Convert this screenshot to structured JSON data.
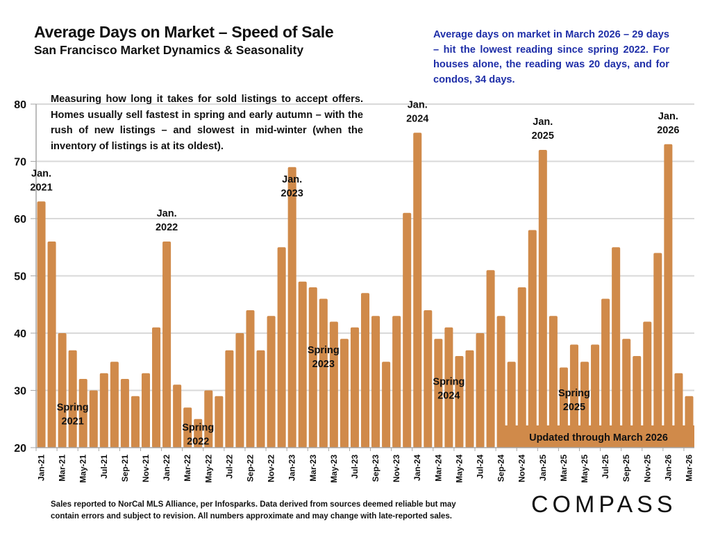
{
  "header": {
    "title": "Average Days on Market – Speed of Sale",
    "subtitle": "San Francisco Market Dynamics & Seasonality"
  },
  "callout": "Average days on market in March 2026 – 29 days –  hit the lowest reading since spring 2022. For houses alone, the reading was 20 days, and for condos, 34 days.",
  "description": "Measuring how long it takes for sold listings to accept offers. Homes usually sell fastest in spring and early autumn – with the rush of new listings – and slowest in mid-winter (when the inventory of listings is at its oldest).",
  "footer": {
    "line1": "Sales reported to NorCal MLS Alliance, per Infosparks. Data derived from sources deemed reliable but may",
    "line2": "contain errors and subject to revision. All numbers approximate and may change with late-reported sales."
  },
  "logo": "COMPASS",
  "colors": {
    "bar": "#d08a4a",
    "grid": "#d9d9d9",
    "callout": "#1f2fa8"
  },
  "chart_data": {
    "type": "bar",
    "title": "Average Days on Market – Speed of Sale",
    "xlabel": "",
    "ylabel": "",
    "ylim": [
      20,
      80
    ],
    "yticks": [
      20,
      30,
      40,
      50,
      60,
      70,
      80
    ],
    "grid": true,
    "categories": [
      "Jan-21",
      "Feb-21",
      "Mar-21",
      "Apr-21",
      "May-21",
      "Jun-21",
      "Jul-21",
      "Aug-21",
      "Sep-21",
      "Oct-21",
      "Nov-21",
      "Dec-21",
      "Jan-22",
      "Feb-22",
      "Mar-22",
      "Apr-22",
      "May-22",
      "Jun-22",
      "Jul-22",
      "Aug-22",
      "Sep-22",
      "Oct-22",
      "Nov-22",
      "Dec-22",
      "Jan-23",
      "Feb-23",
      "Mar-23",
      "Apr-23",
      "May-23",
      "Jun-23",
      "Jul-23",
      "Aug-23",
      "Sep-23",
      "Oct-23",
      "Nov-23",
      "Dec-23",
      "Jan-24",
      "Feb-24",
      "Mar-24",
      "Apr-24",
      "May-24",
      "Jun-24",
      "Jul-24",
      "Aug-24",
      "Sep-24",
      "Oct-24",
      "Nov-24",
      "Dec-24",
      "Jan-25",
      "Feb-25",
      "Mar-25",
      "Apr-25",
      "May-25",
      "Jun-25",
      "Jul-25",
      "Aug-25",
      "Sep-25",
      "Oct-25",
      "Nov-25",
      "Dec-25",
      "Jan-26",
      "Feb-26",
      "Mar-26"
    ],
    "values": [
      63,
      56,
      40,
      37,
      32,
      30,
      33,
      35,
      32,
      29,
      33,
      41,
      56,
      31,
      27,
      25,
      30,
      29,
      37,
      40,
      44,
      37,
      43,
      55,
      69,
      49,
      48,
      46,
      42,
      39,
      41,
      47,
      43,
      35,
      43,
      61,
      75,
      44,
      39,
      41,
      36,
      37,
      40,
      51,
      43,
      35,
      48,
      58,
      72,
      43,
      34,
      38,
      35,
      38,
      46,
      55,
      39,
      36,
      42,
      54,
      73,
      33,
      29
    ],
    "tick_labels_every": 2,
    "annotations": [
      {
        "text": [
          "Jan.",
          "2021"
        ],
        "index": 0,
        "kind": "peak"
      },
      {
        "text": [
          "Jan.",
          "2022"
        ],
        "index": 12,
        "kind": "peak"
      },
      {
        "text": [
          "Jan.",
          "2023"
        ],
        "index": 24,
        "kind": "inside"
      },
      {
        "text": [
          "Jan.",
          "2024"
        ],
        "index": 36,
        "kind": "peak"
      },
      {
        "text": [
          "Jan.",
          "2025"
        ],
        "index": 48,
        "kind": "peak"
      },
      {
        "text": [
          "Jan.",
          "2026"
        ],
        "index": 60,
        "kind": "peak"
      },
      {
        "text": [
          "Spring",
          "2021"
        ],
        "index": 3,
        "kind": "low",
        "y": 26
      },
      {
        "text": [
          "Spring",
          "2022"
        ],
        "index": 15,
        "kind": "low",
        "y": 22.5
      },
      {
        "text": [
          "Spring",
          "2023"
        ],
        "index": 27,
        "kind": "low",
        "y": 36
      },
      {
        "text": [
          "Spring",
          "2024"
        ],
        "index": 39,
        "kind": "low",
        "y": 30.5
      },
      {
        "text": [
          "Spring",
          "2025"
        ],
        "index": 51,
        "kind": "low",
        "y": 28.5
      }
    ],
    "banner": "Updated through March 2026"
  }
}
